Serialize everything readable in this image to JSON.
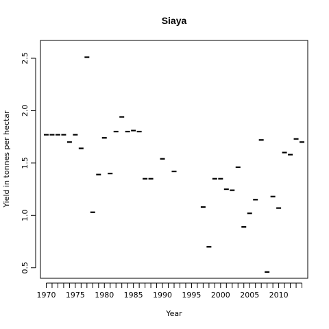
{
  "chart_data": {
    "type": "scatter",
    "title": "Siaya",
    "xlabel": "Year",
    "ylabel": "Yield in tonnes per hectar",
    "x_ticks": [
      1970,
      1975,
      1980,
      1985,
      1990,
      1995,
      2000,
      2005,
      2010
    ],
    "y_ticks": [
      0.5,
      1.0,
      1.5,
      2.0,
      2.5
    ],
    "y_tick_labels": [
      "0.5",
      "1.0",
      "1.5",
      "2.0",
      "2.5"
    ],
    "xlim": [
      1969,
      2015
    ],
    "ylim": [
      0.4,
      2.67
    ],
    "grid": false,
    "marker": "horizontal-dash",
    "points": [
      {
        "x": 1970,
        "y": 1.77
      },
      {
        "x": 1971,
        "y": 1.77
      },
      {
        "x": 1972,
        "y": 1.77
      },
      {
        "x": 1973,
        "y": 1.77
      },
      {
        "x": 1974,
        "y": 1.7
      },
      {
        "x": 1975,
        "y": 1.77
      },
      {
        "x": 1976,
        "y": 1.64
      },
      {
        "x": 1977,
        "y": 2.51
      },
      {
        "x": 1978,
        "y": 1.03
      },
      {
        "x": 1979,
        "y": 1.39
      },
      {
        "x": 1980,
        "y": 1.74
      },
      {
        "x": 1981,
        "y": 1.4
      },
      {
        "x": 1982,
        "y": 1.8
      },
      {
        "x": 1983,
        "y": 1.94
      },
      {
        "x": 1984,
        "y": 1.8
      },
      {
        "x": 1985,
        "y": 1.81
      },
      {
        "x": 1986,
        "y": 1.8
      },
      {
        "x": 1987,
        "y": 1.35
      },
      {
        "x": 1988,
        "y": 1.35
      },
      {
        "x": 1990,
        "y": 1.54
      },
      {
        "x": 1992,
        "y": 1.42
      },
      {
        "x": 1997,
        "y": 1.08
      },
      {
        "x": 1998,
        "y": 0.7
      },
      {
        "x": 1999,
        "y": 1.35
      },
      {
        "x": 2000,
        "y": 1.35
      },
      {
        "x": 2001,
        "y": 1.25
      },
      {
        "x": 2002,
        "y": 1.24
      },
      {
        "x": 2003,
        "y": 1.46
      },
      {
        "x": 2004,
        "y": 0.89
      },
      {
        "x": 2005,
        "y": 1.02
      },
      {
        "x": 2006,
        "y": 1.15
      },
      {
        "x": 2007,
        "y": 1.72
      },
      {
        "x": 2008,
        "y": 0.46
      },
      {
        "x": 2009,
        "y": 1.18
      },
      {
        "x": 2010,
        "y": 1.07
      },
      {
        "x": 2011,
        "y": 1.6
      },
      {
        "x": 2012,
        "y": 1.58
      },
      {
        "x": 2013,
        "y": 1.73
      },
      {
        "x": 2014,
        "y": 1.7
      }
    ]
  }
}
